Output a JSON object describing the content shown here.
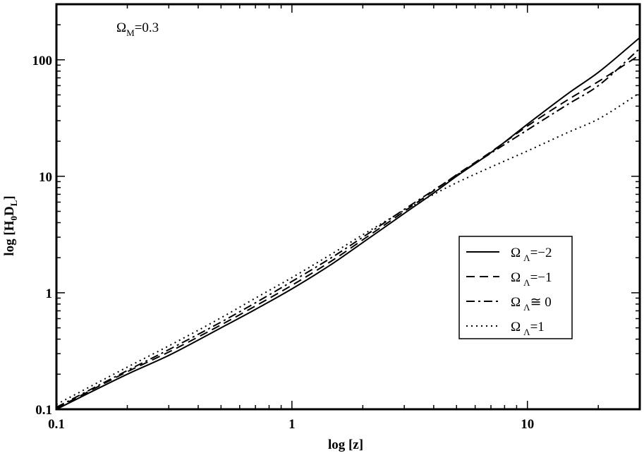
{
  "chart_data": {
    "type": "line",
    "xlabel": "log [z]",
    "ylabel_base": "log [H",
    "ylabel_sub0": "0",
    "ylabel_mid": "D",
    "ylabel_subL": "L",
    "ylabel_end": "]",
    "x_scale": "log",
    "y_scale": "log",
    "xlim": [
      0.1,
      30
    ],
    "ylim": [
      0.1,
      300
    ],
    "x_ticks": [
      {
        "value": 0.1,
        "label": "0.1"
      },
      {
        "value": 1,
        "label": "1"
      },
      {
        "value": 10,
        "label": "10"
      }
    ],
    "y_ticks": [
      {
        "value": 0.1,
        "label": "0.1"
      },
      {
        "value": 1,
        "label": "1"
      },
      {
        "value": 10,
        "label": "10"
      },
      {
        "value": 100,
        "label": "100"
      }
    ],
    "grid": false,
    "legend_position": "right-middle",
    "annotation": {
      "omega": "Ω",
      "sub": "M",
      "value": "=0.3"
    },
    "x": [
      0.1,
      0.2,
      0.3,
      0.5,
      0.7,
      1,
      1.5,
      2,
      3,
      4,
      5,
      7,
      10,
      15,
      20,
      30
    ],
    "series": [
      {
        "name": "Ω Λ =−2",
        "legend_sym": "Ω",
        "legend_sub": "Λ",
        "legend_val": "=−2",
        "dash": "",
        "values": [
          0.1,
          0.2,
          0.29,
          0.5,
          0.72,
          1.08,
          1.8,
          2.7,
          4.8,
          7.2,
          10.0,
          16.0,
          28.0,
          52.0,
          78.0,
          155.0
        ]
      },
      {
        "name": "Ω Λ =−1",
        "legend_sym": "Ω",
        "legend_sub": "Λ",
        "legend_val": "=−1",
        "dash": "12,7",
        "values": [
          0.102,
          0.21,
          0.31,
          0.53,
          0.77,
          1.16,
          1.92,
          2.85,
          5.0,
          7.5,
          10.3,
          16.2,
          27.0,
          46.0,
          65.0,
          110.0
        ]
      },
      {
        "name": "Ω Λ ≅ 0",
        "legend_sym": "Ω",
        "legend_sub": "Λ",
        "legend_val": "≅ 0",
        "dash": "12,5,3,5",
        "values": [
          0.104,
          0.215,
          0.325,
          0.56,
          0.82,
          1.25,
          2.05,
          3.0,
          5.2,
          7.6,
          10.2,
          15.8,
          25.0,
          42.0,
          60.0,
          125.0
        ]
      },
      {
        "name": "Ω Λ =1",
        "legend_sym": "Ω",
        "legend_sub": "Λ",
        "legend_val": "=1",
        "dash": "2,5",
        "values": [
          0.11,
          0.23,
          0.35,
          0.61,
          0.9,
          1.35,
          2.2,
          3.15,
          5.1,
          7.0,
          8.8,
          12.0,
          16.5,
          24.0,
          31.0,
          52.0
        ]
      }
    ]
  }
}
